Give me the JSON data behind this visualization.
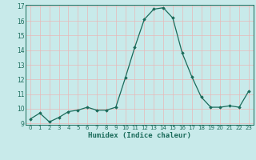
{
  "x": [
    0,
    1,
    2,
    3,
    4,
    5,
    6,
    7,
    8,
    9,
    10,
    11,
    12,
    13,
    14,
    15,
    16,
    17,
    18,
    19,
    20,
    21,
    22,
    23
  ],
  "y": [
    9.3,
    9.7,
    9.1,
    9.4,
    9.8,
    9.9,
    10.1,
    9.9,
    9.9,
    10.1,
    12.1,
    14.2,
    16.1,
    16.8,
    16.9,
    16.2,
    13.8,
    12.2,
    10.8,
    10.1,
    10.1,
    10.2,
    10.1,
    11.2
  ],
  "xlabel": "Humidex (Indice chaleur)",
  "ylim": [
    9,
    17
  ],
  "xlim": [
    -0.5,
    23.5
  ],
  "yticks": [
    9,
    10,
    11,
    12,
    13,
    14,
    15,
    16,
    17
  ],
  "xticks": [
    0,
    1,
    2,
    3,
    4,
    5,
    6,
    7,
    8,
    9,
    10,
    11,
    12,
    13,
    14,
    15,
    16,
    17,
    18,
    19,
    20,
    21,
    22,
    23
  ],
  "line_color": "#1a6b5a",
  "marker_color": "#1a6b5a",
  "bg_color": "#c8eaea",
  "grid_color_v": "#e8b8b8",
  "grid_color_h": "#e8b8b8"
}
